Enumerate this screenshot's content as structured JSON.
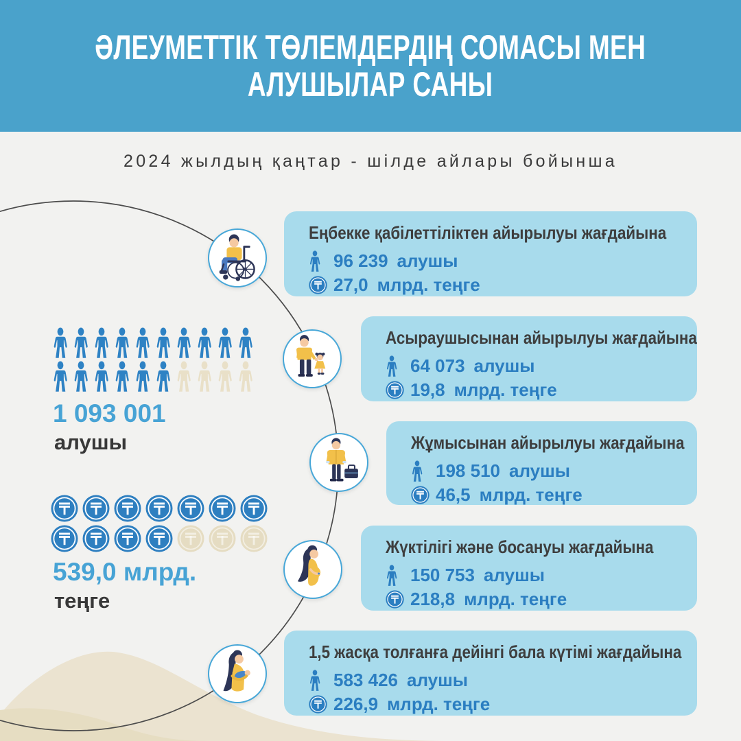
{
  "header": {
    "line1": "ӘЛЕУМЕТТІК ТӨЛЕМДЕРДІҢ СОМАСЫ МЕН",
    "line2": "АЛУШЫЛАР САНЫ",
    "bg_color": "#4aa2cb",
    "text_color": "#ffffff"
  },
  "subtitle": {
    "text": "2024 жылдың қаңтар - шілде айлары бойынша"
  },
  "totals": {
    "recipients": {
      "value": "1 093 001",
      "label": "алушы",
      "pictogram": {
        "icon": "person-icon",
        "filled": 16,
        "empty": 4,
        "per_row": 10,
        "filled_color": "#2e82c4",
        "empty_color": "#e9e0c8"
      }
    },
    "amount": {
      "value": "539,0 млрд.",
      "label": "теңге",
      "pictogram": {
        "icon": "tenge-coin-icon",
        "filled": 11,
        "empty": 3,
        "per_row": 7,
        "filled_color": "#2e7fc0",
        "empty_color": "#e5dcc2"
      }
    }
  },
  "cards": [
    {
      "title": "Еңбекке қабілеттіліктен айырылуы жағдайына",
      "recipients_value": "96 239",
      "recipients_label": "алушы",
      "amount_value": "27,0",
      "amount_label": "млрд. теңге",
      "icon": "person-in-wheelchair-icon"
    },
    {
      "title": "Асыраушысынан айырылуы жағдайына",
      "recipients_value": "64 073",
      "recipients_label": "алушы",
      "amount_value": "19,8",
      "amount_label": "млрд. теңге",
      "icon": "father-with-child-icon"
    },
    {
      "title": "Жұмысынан айырылуы жағдайына",
      "recipients_value": "198 510",
      "recipients_label": "алушы",
      "amount_value": "46,5",
      "amount_label": "млрд. теңге",
      "icon": "man-with-briefcase-icon"
    },
    {
      "title": "Жүктілігі және босануы жағдайына",
      "recipients_value": "150 753",
      "recipients_label": "алушы",
      "amount_value": "218,8",
      "amount_label": "млрд. теңге",
      "icon": "pregnant-woman-icon"
    },
    {
      "title": "1,5 жасқа толғанға дейінгі бала күтімі жағдайына",
      "recipients_value": "583 426",
      "recipients_label": "алушы",
      "amount_value": "226,9",
      "amount_label": "млрд. теңге",
      "icon": "mother-with-baby-icon"
    }
  ],
  "colors": {
    "header_blue": "#4aa2cb",
    "card_bg": "#a8dbec",
    "stat_text_blue": "#2b7ec1",
    "title_text": "#3e3e3e",
    "accent_number_blue": "#47a3d5",
    "pictogram_blue": "#2e82c4",
    "pictogram_beige": "#e9e0c8",
    "arc_line": "#4c4c4c",
    "circle_border": "#47a7d8",
    "mountain_light": "#ebe3d0",
    "mountain_dark": "#e6ddc2"
  },
  "chart_data": {
    "type": "table",
    "title": "Әлеуметтік төлемдердің сомасы мен алушылар саны",
    "subtitle": "2024 жылдың қаңтар - шілде айлары бойынша",
    "categories": [
      "Еңбекке қабілеттіліктен айырылуы жағдайына",
      "Асыраушысынан айырылуы жағдайына",
      "Жұмысынан айырылуы жағдайына",
      "Жүктілігі және босануы жағдайына",
      "1,5 жасқа толғанға дейінгі бала күтімі жағдайына"
    ],
    "series": [
      {
        "name": "алушы (recipients)",
        "values": [
          96239,
          64073,
          198510,
          150753,
          583426
        ]
      },
      {
        "name": "млрд. теңге (billions KZT)",
        "values": [
          27.0,
          19.8,
          46.5,
          218.8,
          226.9
        ]
      }
    ],
    "totals": {
      "алушы": 1093001,
      "млрд. теңге": 539.0
    },
    "pictograph": {
      "recipients_icons": {
        "filled": 16,
        "empty": 4
      },
      "amount_icons": {
        "filled": 11,
        "empty": 3
      }
    }
  }
}
